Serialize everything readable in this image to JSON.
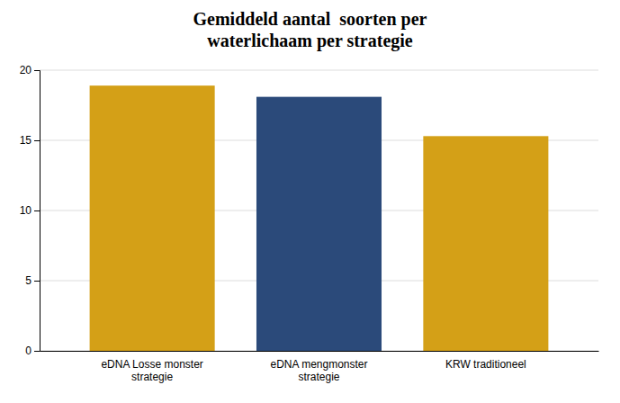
{
  "chart_data": {
    "type": "bar",
    "title": "Gemiddeld aantal  soorten per\nwaterlichaam per strategie",
    "categories": [
      "eDNA Losse monster\nstrategie",
      "eDNA mengmonster\nstrategie",
      "KRW traditioneel"
    ],
    "values": [
      18.9,
      18.1,
      15.3
    ],
    "colors": [
      "#D4A017",
      "#2B4A7A",
      "#D4A017"
    ],
    "ylim": [
      0,
      20
    ],
    "yticks": [
      0,
      5,
      10,
      15,
      20
    ],
    "grid": true
  }
}
